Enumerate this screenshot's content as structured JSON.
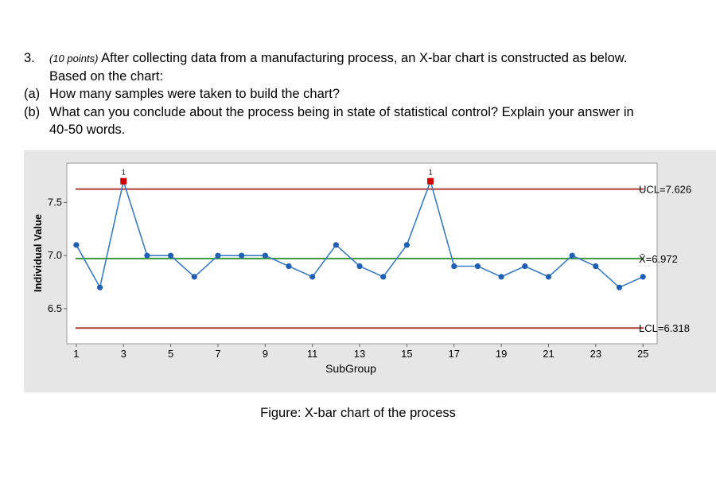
{
  "question": {
    "number": "3.",
    "points": "(10 points)",
    "line1": "After collecting data from a manufacturing process, an X-bar chart is constructed as below.",
    "line2": "Based on the chart:",
    "part_a_label": "(a)",
    "part_a": "How many samples were taken to build the chart?",
    "part_b_label": "(b)",
    "part_b_line1": "What can you conclude about the process being in state of statistical control? Explain your answer in",
    "part_b_line2": "40-50 words."
  },
  "caption": "Figure: X-bar chart of the process",
  "chart_data": {
    "type": "line",
    "title": "",
    "xlabel": "SubGroup",
    "ylabel": "Individual Value",
    "x": [
      1,
      2,
      3,
      4,
      5,
      6,
      7,
      8,
      9,
      10,
      11,
      12,
      13,
      14,
      15,
      16,
      17,
      18,
      19,
      20,
      21,
      22,
      23,
      24,
      25
    ],
    "values": [
      7.1,
      6.7,
      7.7,
      7.0,
      7.0,
      6.8,
      7.0,
      7.0,
      7.0,
      6.9,
      6.8,
      7.1,
      6.9,
      6.8,
      7.1,
      7.7,
      6.9,
      6.9,
      6.8,
      6.9,
      6.8,
      7.0,
      6.9,
      6.7,
      6.8
    ],
    "x_ticks": [
      "1",
      "3",
      "5",
      "7",
      "9",
      "11",
      "13",
      "15",
      "17",
      "19",
      "21",
      "23",
      "25"
    ],
    "y_ticks": [
      "6.5",
      "7.0",
      "7.5"
    ],
    "xlim": [
      0.6,
      25.6
    ],
    "ylim": [
      6.17,
      7.87
    ],
    "control_limits": {
      "ucl": 7.626,
      "ucl_label": "UCL=7.626",
      "center": 6.972,
      "center_label": "X̄=6.972",
      "lcl": 6.318,
      "lcl_label": "LCL=6.318"
    },
    "out_of_control": [
      3,
      16
    ],
    "out_of_control_flag": "1",
    "colors": {
      "series": "#3b7cc4",
      "points": "#1f5fb5",
      "limits": "#b03a3a",
      "center": "#3a9a3a",
      "flag": "#d40000",
      "panel": "#e6e6e6",
      "plot_bg": "#ffffff"
    }
  }
}
